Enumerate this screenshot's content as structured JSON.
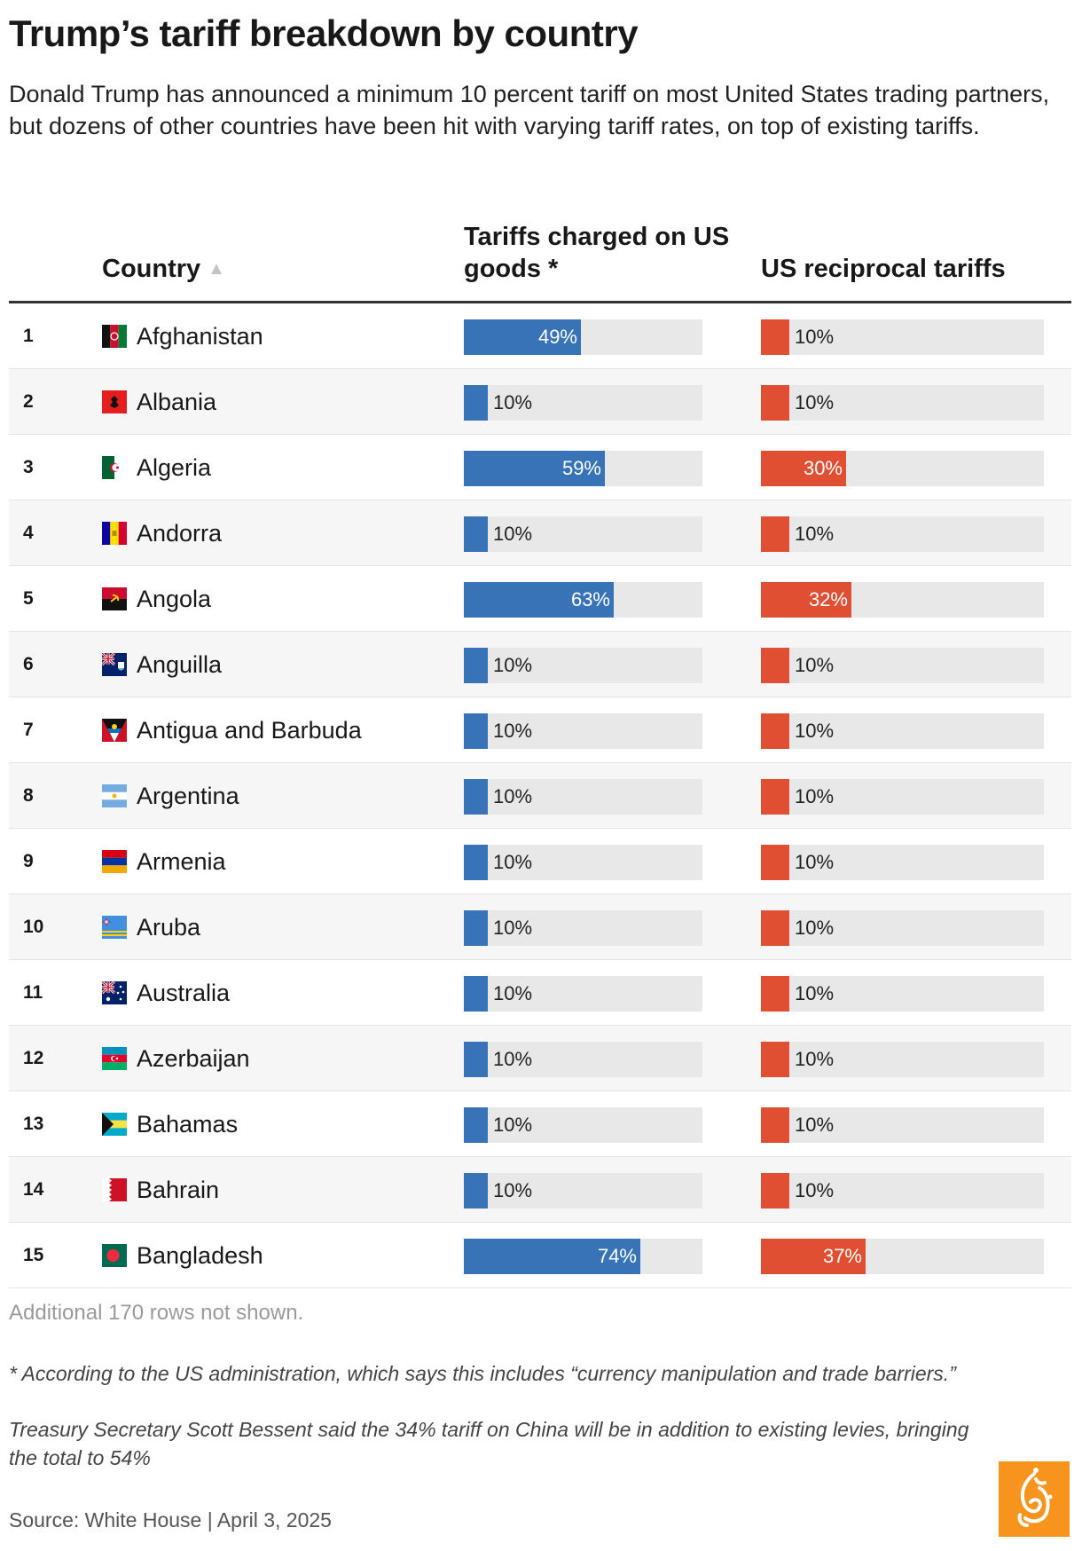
{
  "title": "Trump’s tariff breakdown by country",
  "subtitle": "Donald Trump has announced a minimum 10 percent tariff on most United States trading partners, but dozens of other countries have been hit with varying tariff rates, on top of existing tariffs.",
  "columns": {
    "country": "Country",
    "sort_indicator": "▲",
    "us_goods": "Tariffs charged on US goods *",
    "reciprocal": "US reciprocal tariffs"
  },
  "chart_data": {
    "type": "table",
    "title": "Trump’s tariff breakdown by country",
    "columns": [
      "Country",
      "Tariffs charged on US goods *",
      "US reciprocal tariffs"
    ],
    "rows": [
      {
        "rank": "1",
        "country": "Afghanistan",
        "us_goods": 49,
        "reciprocal": 10,
        "us_goods_label": "49%",
        "reciprocal_label": "10%"
      },
      {
        "rank": "2",
        "country": "Albania",
        "us_goods": 10,
        "reciprocal": 10,
        "us_goods_label": "10%",
        "reciprocal_label": "10%"
      },
      {
        "rank": "3",
        "country": "Algeria",
        "us_goods": 59,
        "reciprocal": 30,
        "us_goods_label": "59%",
        "reciprocal_label": "30%"
      },
      {
        "rank": "4",
        "country": "Andorra",
        "us_goods": 10,
        "reciprocal": 10,
        "us_goods_label": "10%",
        "reciprocal_label": "10%"
      },
      {
        "rank": "5",
        "country": "Angola",
        "us_goods": 63,
        "reciprocal": 32,
        "us_goods_label": "63%",
        "reciprocal_label": "32%"
      },
      {
        "rank": "6",
        "country": "Anguilla",
        "us_goods": 10,
        "reciprocal": 10,
        "us_goods_label": "10%",
        "reciprocal_label": "10%"
      },
      {
        "rank": "7",
        "country": "Antigua and Barbuda",
        "us_goods": 10,
        "reciprocal": 10,
        "us_goods_label": "10%",
        "reciprocal_label": "10%"
      },
      {
        "rank": "8",
        "country": "Argentina",
        "us_goods": 10,
        "reciprocal": 10,
        "us_goods_label": "10%",
        "reciprocal_label": "10%"
      },
      {
        "rank": "9",
        "country": "Armenia",
        "us_goods": 10,
        "reciprocal": 10,
        "us_goods_label": "10%",
        "reciprocal_label": "10%"
      },
      {
        "rank": "10",
        "country": "Aruba",
        "us_goods": 10,
        "reciprocal": 10,
        "us_goods_label": "10%",
        "reciprocal_label": "10%"
      },
      {
        "rank": "11",
        "country": "Australia",
        "us_goods": 10,
        "reciprocal": 10,
        "us_goods_label": "10%",
        "reciprocal_label": "10%"
      },
      {
        "rank": "12",
        "country": "Azerbaijan",
        "us_goods": 10,
        "reciprocal": 10,
        "us_goods_label": "10%",
        "reciprocal_label": "10%"
      },
      {
        "rank": "13",
        "country": "Bahamas",
        "us_goods": 10,
        "reciprocal": 10,
        "us_goods_label": "10%",
        "reciprocal_label": "10%"
      },
      {
        "rank": "14",
        "country": "Bahrain",
        "us_goods": 10,
        "reciprocal": 10,
        "us_goods_label": "10%",
        "reciprocal_label": "10%"
      },
      {
        "rank": "15",
        "country": "Bangladesh",
        "us_goods": 74,
        "reciprocal": 37,
        "us_goods_label": "74%",
        "reciprocal_label": "37%"
      }
    ],
    "us_goods_max": 100,
    "reciprocal_max": 100
  },
  "colors": {
    "us_goods_bar": "#3773b6",
    "reciprocal_bar": "#e14f33",
    "track": "#e8e8e8",
    "logo": "#f7941d"
  },
  "footer": {
    "more_rows": "Additional 170 rows not shown.",
    "note_asterisk": "* According to the US administration, which says this includes “currency manipulation and trade barriers.”",
    "note_china": "Treasury Secretary Scott Bessent said the 34% tariff on China will be in addition to existing levies, bringing the total to 54%",
    "source": "Source: White House | April 3, 2025",
    "logo_icon": "al-jazeera-logo-icon"
  }
}
